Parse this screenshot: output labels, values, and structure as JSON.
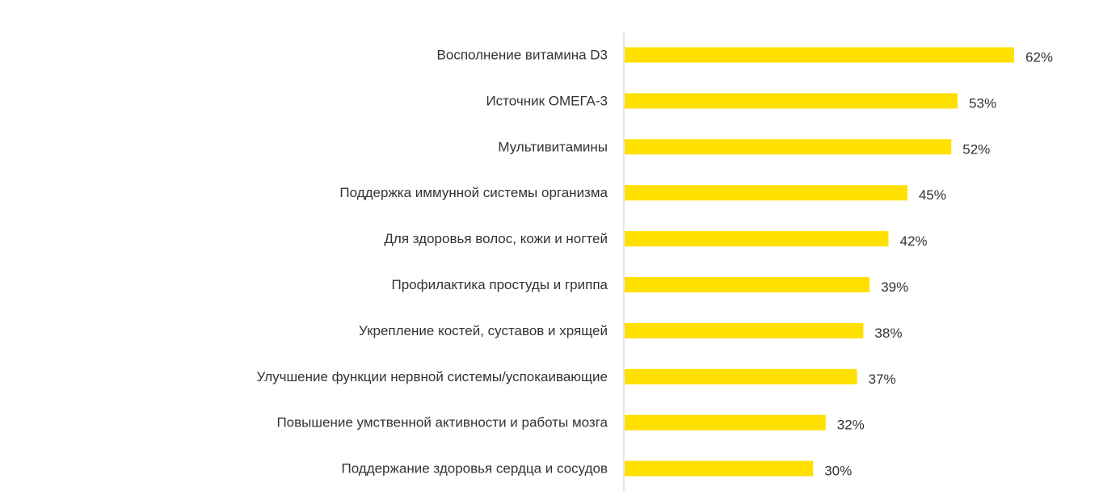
{
  "chart_data": {
    "type": "bar",
    "orientation": "horizontal",
    "title": "",
    "xlabel": "",
    "ylabel": "",
    "categories": [
      "Восполнение витамина D3",
      "Источник ОМЕГА-3",
      "Мультивитамины",
      "Поддержка иммунной системы организма",
      "Для здоровья волос, кожи и ногтей",
      "Профилактика простуды и гриппа",
      "Укрепление костей, суставов и хрящей",
      "Улучшение функции нервной системы/успокаивающие",
      "Повышение умственной активности и работы мозга",
      "Поддержание здоровья сердца и сосудов"
    ],
    "values": [
      62,
      53,
      52,
      45,
      42,
      39,
      38,
      37,
      32,
      30
    ],
    "value_labels": [
      "62%",
      "53%",
      "52%",
      "45%",
      "42%",
      "39%",
      "38%",
      "37%",
      "32%",
      "30%"
    ],
    "xlim": [
      0,
      100
    ],
    "grid": false,
    "legend": "none",
    "bar_color": "#FFE000",
    "axis_color": "#cccccc",
    "text_color": "#333333"
  }
}
